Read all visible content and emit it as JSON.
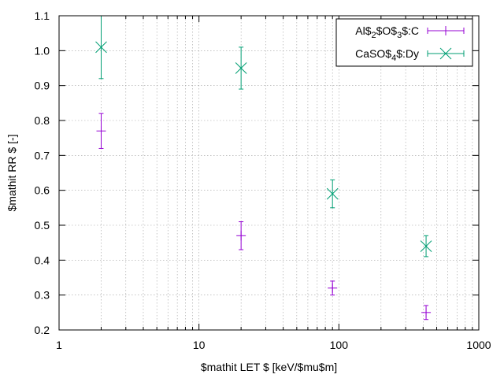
{
  "chart_data": {
    "type": "scatter",
    "title": "",
    "xlabel": "$mathit LET $ [keV/$mu$m]",
    "ylabel": "$mathit RR $ [-]",
    "xscale": "log",
    "xlim": [
      1,
      1000
    ],
    "ylim": [
      0.2,
      1.1
    ],
    "grid": true,
    "legend_position": "top-right",
    "x_ticks": [
      1,
      10,
      100,
      1000
    ],
    "x_tick_labels": [
      "1",
      "10",
      "100",
      "1000"
    ],
    "y_ticks": [
      0.2,
      0.3,
      0.4,
      0.5,
      0.6,
      0.7,
      0.8,
      0.9,
      1.0,
      1.1
    ],
    "y_tick_labels": [
      "0.2",
      "0.3",
      "0.4",
      "0.5",
      "0.6",
      "0.7",
      "0.8",
      "0.9",
      "1.0",
      "1.1"
    ],
    "series": [
      {
        "name": "Al$ 2 $O$ 3 $:C",
        "name_parts": [
          "Al$",
          "2",
          "$O$",
          "3",
          "$:C"
        ],
        "marker": "plus",
        "color": "#9400d3",
        "points": [
          {
            "x": 2,
            "y": 0.77,
            "yerr": 0.05
          },
          {
            "x": 20,
            "y": 0.47,
            "yerr": 0.04
          },
          {
            "x": 90,
            "y": 0.32,
            "yerr": 0.02
          },
          {
            "x": 420,
            "y": 0.25,
            "yerr": 0.02
          }
        ]
      },
      {
        "name": "CaSO$ 4 $:Dy",
        "name_parts": [
          "CaSO$",
          "4",
          "$:Dy"
        ],
        "marker": "cross",
        "color": "#009e73",
        "points": [
          {
            "x": 2,
            "y": 1.01,
            "yerr": 0.09
          },
          {
            "x": 20,
            "y": 0.95,
            "yerr": 0.06
          },
          {
            "x": 90,
            "y": 0.59,
            "yerr": 0.04
          },
          {
            "x": 420,
            "y": 0.44,
            "yerr": 0.03
          }
        ]
      }
    ]
  }
}
